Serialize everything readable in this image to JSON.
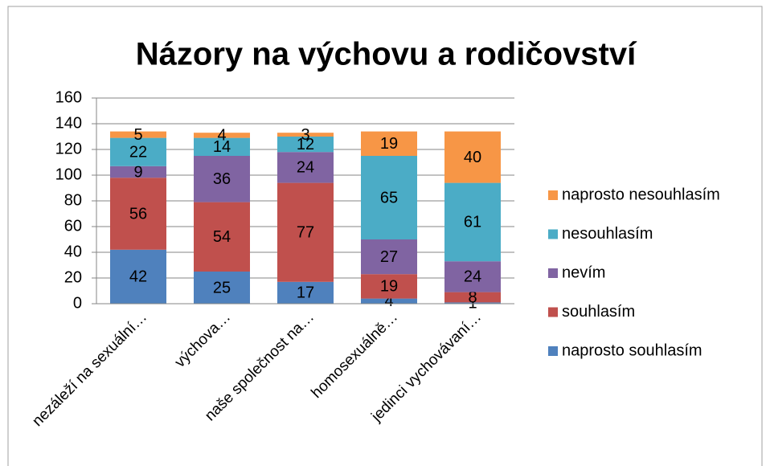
{
  "chart_data": {
    "type": "stacked_bar",
    "title": "Názory na výchovu a rodičovství",
    "categories": [
      "nezáleží na sexuální…",
      "výchova…",
      "naše společnost na…",
      "homosexuálně…",
      "jedinci vychovávaní…"
    ],
    "series": [
      {
        "name": "naprosto souhlasím",
        "color": "#4f81bd",
        "values": [
          42,
          25,
          17,
          4,
          1
        ]
      },
      {
        "name": "souhlasím",
        "color": "#c0504d",
        "values": [
          56,
          54,
          77,
          19,
          8
        ]
      },
      {
        "name": "nevím",
        "color": "#8064a2",
        "values": [
          9,
          36,
          24,
          27,
          24
        ]
      },
      {
        "name": "nesouhlasím",
        "color": "#4bacc6",
        "values": [
          22,
          14,
          12,
          65,
          61
        ]
      },
      {
        "name": "naprosto nesouhlasím",
        "color": "#f79646",
        "values": [
          5,
          4,
          3,
          19,
          40
        ]
      }
    ],
    "ylim": [
      0,
      160
    ],
    "yticks": [
      0,
      20,
      40,
      60,
      80,
      100,
      120,
      140,
      160
    ],
    "grid": true,
    "legend": "right"
  }
}
